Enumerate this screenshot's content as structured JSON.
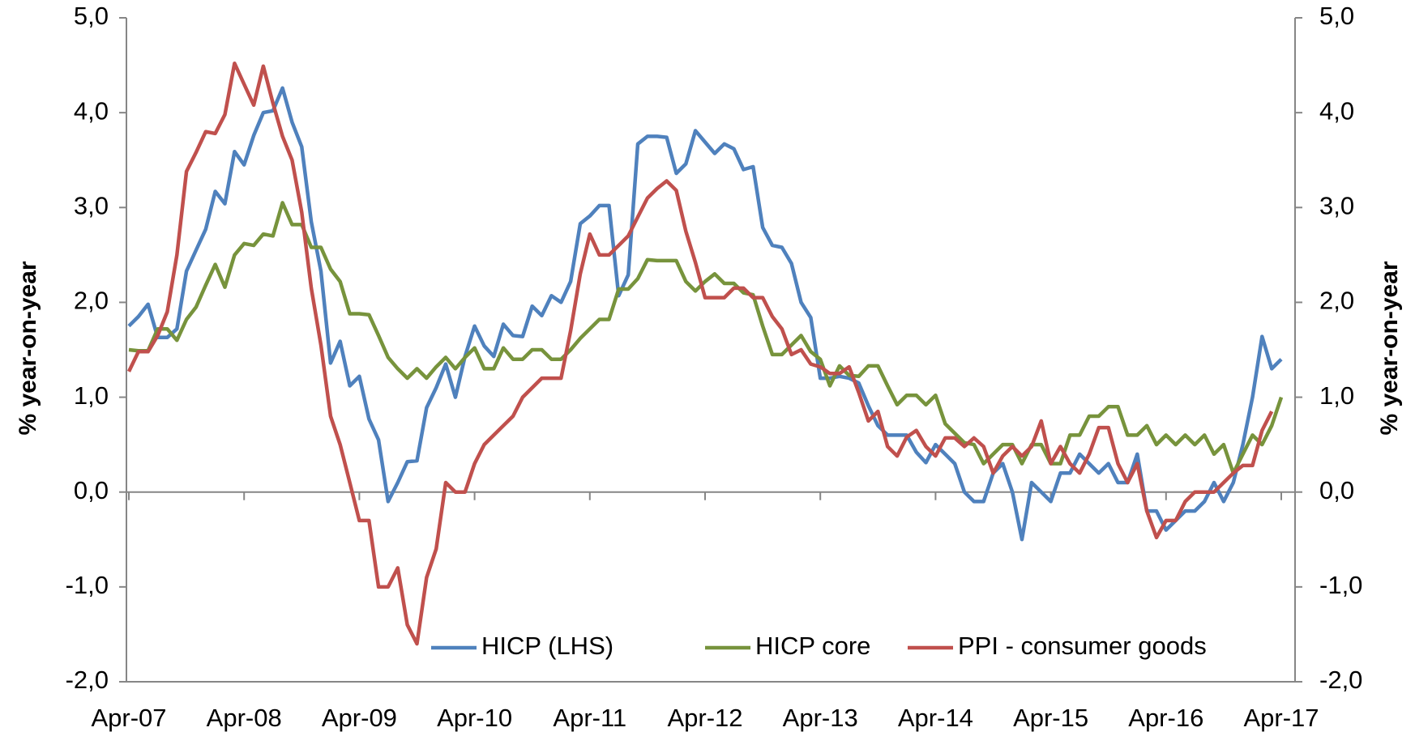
{
  "chart_data": {
    "type": "line",
    "y_label": "%  year-on-year",
    "y2_label": "%  year-on-year",
    "categories": [
      "Apr-07",
      null,
      null,
      null,
      null,
      null,
      null,
      null,
      null,
      null,
      null,
      null,
      "Apr-08",
      null,
      null,
      null,
      null,
      null,
      null,
      null,
      null,
      null,
      null,
      null,
      "Apr-09",
      null,
      null,
      null,
      null,
      null,
      null,
      null,
      null,
      null,
      null,
      null,
      "Apr-10",
      null,
      null,
      null,
      null,
      null,
      null,
      null,
      null,
      null,
      null,
      null,
      "Apr-11",
      null,
      null,
      null,
      null,
      null,
      null,
      null,
      null,
      null,
      null,
      null,
      "Apr-12",
      null,
      null,
      null,
      null,
      null,
      null,
      null,
      null,
      null,
      null,
      null,
      "Apr-13",
      null,
      null,
      null,
      null,
      null,
      null,
      null,
      null,
      null,
      null,
      null,
      "Apr-14",
      null,
      null,
      null,
      null,
      null,
      null,
      null,
      null,
      null,
      null,
      null,
      "Apr-15",
      null,
      null,
      null,
      null,
      null,
      null,
      null,
      null,
      null,
      null,
      null,
      "Apr-16",
      null,
      null,
      null,
      null,
      null,
      null,
      null,
      null,
      null,
      null,
      null,
      "Apr-17"
    ],
    "series": [
      {
        "name": "HICP (LHS)",
        "color": "#4f81bd",
        "axis": "y",
        "values": [
          1.75,
          1.85,
          1.98,
          1.63,
          1.63,
          1.72,
          2.33,
          2.55,
          2.77,
          3.17,
          3.04,
          3.59,
          3.45,
          3.76,
          4.0,
          4.02,
          4.26,
          3.9,
          3.64,
          2.85,
          2.33,
          1.36,
          1.59,
          1.12,
          1.22,
          0.77,
          0.55,
          -0.1,
          0.1,
          0.32,
          0.33,
          0.89,
          1.1,
          1.35,
          1.0,
          1.43,
          1.75,
          1.54,
          1.43,
          1.77,
          1.65,
          1.64,
          1.96,
          1.86,
          2.07,
          2.0,
          2.22,
          2.83,
          2.91,
          3.02,
          3.02,
          2.07,
          2.29,
          3.67,
          3.75,
          3.75,
          3.74,
          3.36,
          3.46,
          3.81,
          3.69,
          3.57,
          3.67,
          3.62,
          3.4,
          3.43,
          2.79,
          2.6,
          2.58,
          2.41,
          2.0,
          1.84,
          1.2,
          1.2,
          1.22,
          1.2,
          1.15,
          0.91,
          0.7,
          0.6,
          0.6,
          0.6,
          0.42,
          0.31,
          0.5,
          0.4,
          0.3,
          0.0,
          -0.1,
          -0.1,
          0.2,
          0.3,
          0.0,
          -0.5,
          0.1,
          0.0,
          -0.1,
          0.2,
          0.2,
          0.4,
          0.3,
          0.2,
          0.3,
          0.1,
          0.1,
          0.4,
          -0.2,
          -0.2,
          -0.4,
          -0.3,
          -0.2,
          -0.2,
          -0.1,
          0.1,
          -0.1,
          0.1,
          0.5,
          1.0,
          1.64,
          1.3,
          1.4
        ]
      },
      {
        "name": "HICP core",
        "color": "#77933c",
        "axis": "y2",
        "values": [
          1.5,
          1.49,
          1.49,
          1.72,
          1.72,
          1.6,
          1.82,
          1.95,
          2.18,
          2.4,
          2.16,
          2.5,
          2.62,
          2.6,
          2.72,
          2.7,
          3.05,
          2.82,
          2.82,
          2.58,
          2.58,
          2.35,
          2.22,
          1.88,
          1.88,
          1.87,
          1.65,
          1.42,
          1.3,
          1.2,
          1.3,
          1.2,
          1.32,
          1.42,
          1.3,
          1.42,
          1.52,
          1.3,
          1.3,
          1.52,
          1.4,
          1.4,
          1.5,
          1.5,
          1.4,
          1.4,
          1.5,
          1.62,
          1.72,
          1.82,
          1.82,
          2.14,
          2.14,
          2.25,
          2.45,
          2.44,
          2.44,
          2.44,
          2.22,
          2.12,
          2.22,
          2.3,
          2.2,
          2.2,
          2.1,
          2.08,
          1.75,
          1.45,
          1.45,
          1.55,
          1.65,
          1.48,
          1.4,
          1.12,
          1.33,
          1.23,
          1.22,
          1.33,
          1.33,
          1.12,
          0.92,
          1.02,
          1.02,
          0.92,
          1.02,
          0.72,
          0.62,
          0.52,
          0.5,
          0.3,
          0.4,
          0.5,
          0.5,
          0.3,
          0.5,
          0.5,
          0.3,
          0.3,
          0.6,
          0.6,
          0.8,
          0.8,
          0.9,
          0.9,
          0.6,
          0.6,
          0.7,
          0.5,
          0.6,
          0.5,
          0.6,
          0.5,
          0.6,
          0.4,
          0.5,
          0.2,
          0.4,
          0.6,
          0.5,
          0.7,
          1.0
        ]
      },
      {
        "name": "PPI - consumer goods",
        "color": "#c0504d",
        "axis": "y2",
        "values": [
          1.27,
          1.48,
          1.48,
          1.65,
          1.9,
          2.5,
          3.38,
          3.58,
          3.8,
          3.78,
          3.98,
          4.52,
          4.3,
          4.08,
          4.49,
          4.1,
          3.75,
          3.5,
          2.95,
          2.15,
          1.55,
          0.8,
          0.5,
          0.1,
          -0.3,
          -0.3,
          -1.0,
          -1.0,
          -0.8,
          -1.4,
          -1.6,
          -0.9,
          -0.6,
          0.1,
          0.0,
          0.0,
          0.3,
          0.5,
          0.6,
          0.7,
          0.8,
          1.0,
          1.1,
          1.2,
          1.2,
          1.2,
          1.7,
          2.3,
          2.72,
          2.5,
          2.5,
          2.6,
          2.7,
          2.9,
          3.1,
          3.2,
          3.28,
          3.18,
          2.75,
          2.42,
          2.05,
          2.05,
          2.05,
          2.15,
          2.15,
          2.05,
          2.05,
          1.85,
          1.72,
          1.45,
          1.5,
          1.35,
          1.32,
          1.25,
          1.25,
          1.32,
          1.05,
          0.75,
          0.85,
          0.48,
          0.38,
          0.58,
          0.65,
          0.48,
          0.38,
          0.57,
          0.57,
          0.48,
          0.57,
          0.48,
          0.2,
          0.38,
          0.48,
          0.38,
          0.48,
          0.75,
          0.3,
          0.48,
          0.3,
          0.2,
          0.4,
          0.68,
          0.68,
          0.3,
          0.1,
          0.3,
          -0.2,
          -0.48,
          -0.3,
          -0.3,
          -0.1,
          0.0,
          0.0,
          0.0,
          0.1,
          0.2,
          0.28,
          0.28,
          0.65,
          0.85,
          null
        ]
      }
    ],
    "ylim": [
      -2,
      5
    ],
    "yticks": [
      {
        "value": -2,
        "label": "-2,0"
      },
      {
        "value": -1,
        "label": "-1,0"
      },
      {
        "value": 0,
        "label": "0,0"
      },
      {
        "value": 1,
        "label": "1,0"
      },
      {
        "value": 2,
        "label": "2,0"
      },
      {
        "value": 3,
        "label": "3,0"
      },
      {
        "value": 4,
        "label": "4,0"
      },
      {
        "value": 5,
        "label": "5,0"
      }
    ],
    "y2lim": [
      -2,
      5
    ],
    "y2ticks": [
      {
        "value": -2,
        "label": "-2,0"
      },
      {
        "value": -1,
        "label": "-1,0"
      },
      {
        "value": 0,
        "label": "0,0"
      },
      {
        "value": 1,
        "label": "1,0"
      },
      {
        "value": 2,
        "label": "2,0"
      },
      {
        "value": 3,
        "label": "3,0"
      },
      {
        "value": 4,
        "label": "4,0"
      },
      {
        "value": 5,
        "label": "5,0"
      }
    ]
  }
}
